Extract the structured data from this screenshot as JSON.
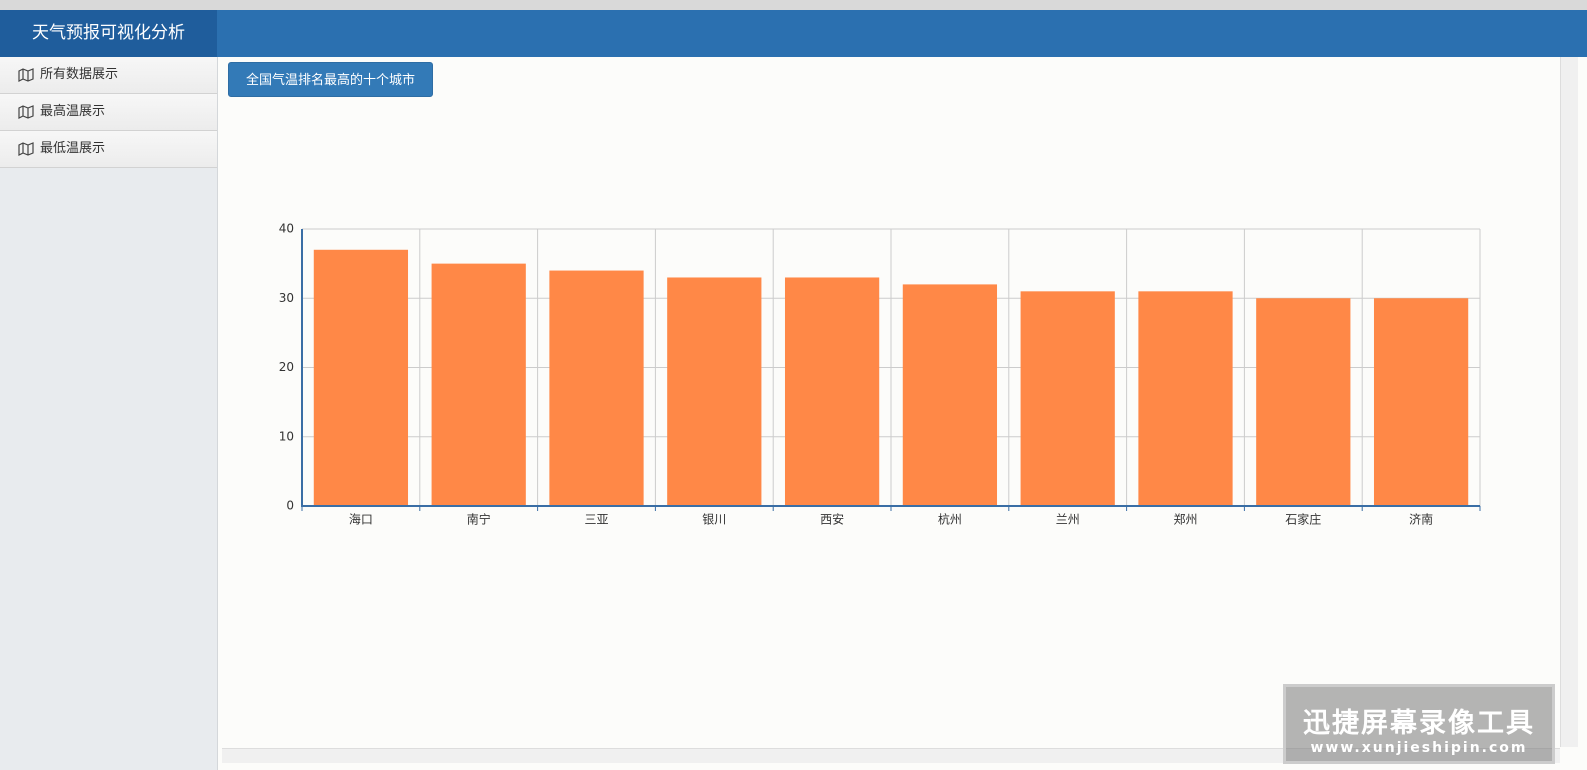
{
  "header": {
    "title": "天气预报可视化分析"
  },
  "sidebar": {
    "items": [
      "所有数据展示",
      "最高温展示",
      "最低温展示"
    ]
  },
  "button": {
    "label": "全国气温排名最高的十个城市"
  },
  "watermark": {
    "title": "迅捷屏幕录像工具",
    "url": "www.xunjieshipin.com"
  },
  "chart_data": {
    "type": "bar",
    "categories": [
      "海口",
      "南宁",
      "三亚",
      "银川",
      "西安",
      "杭州",
      "兰州",
      "郑州",
      "石家庄",
      "济南"
    ],
    "values": [
      37,
      35,
      34,
      33,
      33,
      32,
      31,
      31,
      30,
      30
    ],
    "color": "#ff8847",
    "ylim": [
      0,
      40
    ],
    "yticks": [
      0,
      10,
      20,
      30,
      40
    ],
    "grid": true
  }
}
